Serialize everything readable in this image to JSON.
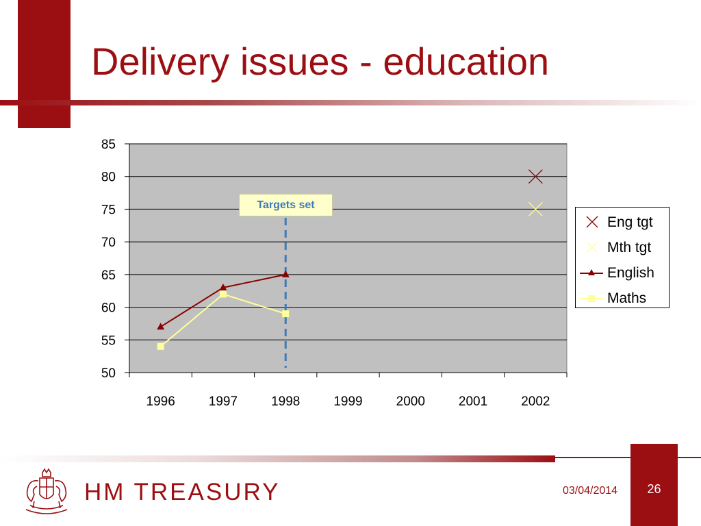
{
  "slide": {
    "title": "Delivery issues - education",
    "footer": {
      "date": "03/04/2014",
      "page_number": "26",
      "org_name": "HM TREASURY"
    }
  },
  "annotation": {
    "label": "Targets set",
    "x": 1998
  },
  "colors": {
    "brand": "#9b0f12",
    "plot_background": "#c0c0c0",
    "english": "#8b0000",
    "maths": "#ffff99",
    "annotation_text": "#3e79b8",
    "annotation_line": "#3e79b8"
  },
  "chart_data": {
    "type": "line",
    "title": "",
    "xlabel": "",
    "ylabel": "",
    "categories": [
      "1996",
      "1997",
      "1998",
      "1999",
      "2000",
      "2001",
      "2002"
    ],
    "ylim": [
      50,
      85
    ],
    "yticks": [
      50,
      55,
      60,
      65,
      70,
      75,
      80,
      85
    ],
    "grid": true,
    "legend_position": "right",
    "series": [
      {
        "name": "Eng tgt",
        "marker": "x",
        "line": false,
        "values": [
          null,
          null,
          null,
          null,
          null,
          null,
          80
        ]
      },
      {
        "name": "Mth tgt",
        "marker": "x",
        "line": false,
        "values": [
          null,
          null,
          null,
          null,
          null,
          null,
          75
        ]
      },
      {
        "name": "English",
        "marker": "triangle",
        "line": true,
        "values": [
          57,
          63,
          65,
          null,
          null,
          null,
          null
        ]
      },
      {
        "name": "Maths",
        "marker": "square",
        "line": true,
        "values": [
          54,
          62,
          59,
          null,
          null,
          null,
          null
        ]
      }
    ]
  }
}
